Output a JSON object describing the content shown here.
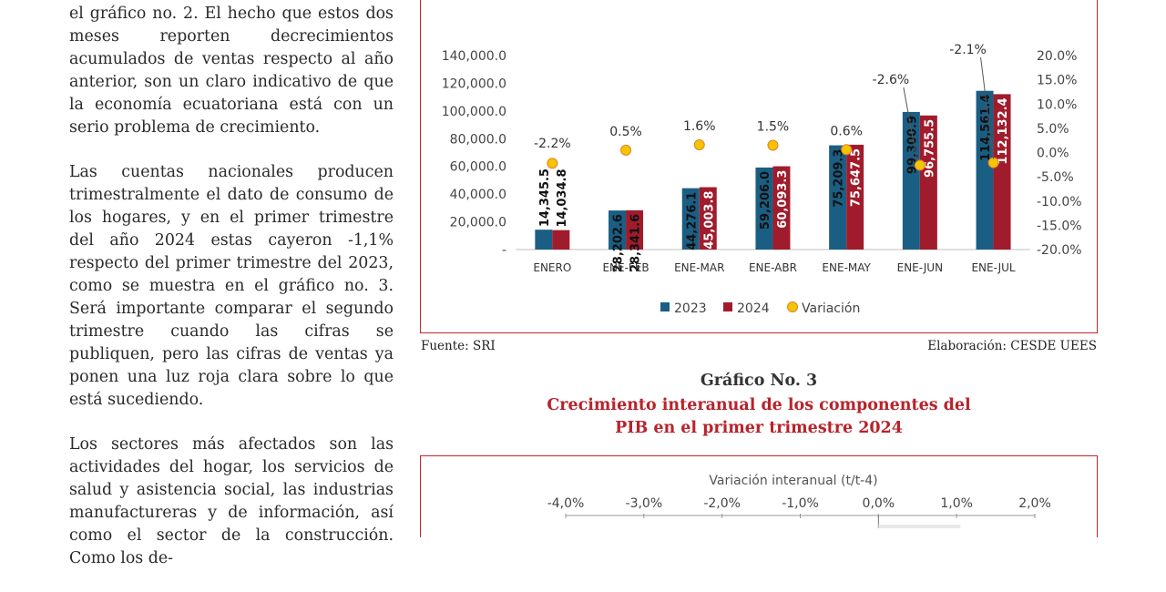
{
  "body_text": {
    "p1": "el gráfico no. 2. El hecho que estos dos meses reporten decrecimientos acumulados de ventas respecto al año anterior, son un claro indicativo de que la economía ecuatoriana está con un serio problema de crecimiento.",
    "p2": "Las cuentas nacionales producen trimestralmente el dato de consumo de los hogares, y en el primer trimestre del año 2024 estas cayeron -1,1% respecto del primer trimestre del 2023, como se muestra en el gráfico no. 3. Será importante comparar el segundo trimestre cuando las cifras se publiquen, pero las cifras de ventas ya ponen una luz roja clara sobre lo que está sucediendo.",
    "p3": "Los sectores más afectados son las actividades del hogar, los servicios de salud y asistencia social, las industrias manufactureras y de información, así como el sector de la construcción. Como los de-"
  },
  "chart_data": [
    {
      "type": "bar",
      "categories": [
        "ENERO",
        "ENE-FEB",
        "ENE-MAR",
        "ENE-ABR",
        "ENE-MAY",
        "ENE-JUN",
        "ENE-JUL"
      ],
      "series": [
        {
          "name": "2023",
          "values": [
            14345.5,
            28202.6,
            44276.1,
            59206.0,
            75209.3,
            99300.9,
            114561.4
          ],
          "labels": [
            "14,345.5",
            "28,202.6",
            "44,276.1",
            "59,206.0",
            "75,209.3",
            "99,300.9",
            "114,561.4"
          ],
          "color": "#1b5e84"
        },
        {
          "name": "2024",
          "values": [
            14034.8,
            28341.6,
            45003.8,
            60093.3,
            75647.5,
            96755.5,
            112132.4
          ],
          "labels": [
            "14,034.8",
            "28,341.6",
            "45,003.8",
            "60,093.3",
            "75,647.5",
            "96,755.5",
            "112,132.4"
          ],
          "color": "#a01c2c"
        },
        {
          "name": "Variación",
          "type": "scatter",
          "axis": "right",
          "values": [
            -2.2,
            0.5,
            1.6,
            1.5,
            0.6,
            -2.6,
            -2.1
          ],
          "labels": [
            "-2.2%",
            "0.5%",
            "1.6%",
            "1.5%",
            "0.6%",
            "-2.6%",
            "-2.1%"
          ],
          "color": "#f5c400"
        }
      ],
      "ylim": [
        0,
        140000
      ],
      "y_ticks": [
        "-",
        "20,000.0",
        "40,000.0",
        "60,000.0",
        "80,000.0",
        "100,000.0",
        "120,000.0",
        "140,000.0"
      ],
      "y2lim": [
        -20,
        20
      ],
      "y2_ticks": [
        "-20.0%",
        "-15.0%",
        "-10.0%",
        "-5.0%",
        "0.0%",
        "5.0%",
        "10.0%",
        "15.0%",
        "20.0%"
      ],
      "legend": "bottom",
      "grid": false
    },
    {
      "type": "bar",
      "orientation": "horizontal",
      "xlabel": "Variación interanual (t/t-4)",
      "x_ticks": [
        "-4,0%",
        "-3,0%",
        "-2,0%",
        "-1,0%",
        "0,0%",
        "1,0%",
        "2,0%"
      ],
      "xlim": [
        -4,
        2
      ]
    }
  ],
  "source": {
    "fuente": "Fuente: SRI",
    "elaboracion": "Elaboración: CESDE UEES"
  },
  "grafico3": {
    "number": "Gráfico No. 3",
    "title_line1": "Crecimiento interanual de los componentes del",
    "title_line2": "PIB en el primer trimestre 2024"
  },
  "colors": {
    "accent_red": "#c0262d",
    "title_red": "#b8232b",
    "bar_2023": "#1b5e84",
    "bar_2024": "#a01c2c",
    "variation_dot": "#f5c400"
  }
}
